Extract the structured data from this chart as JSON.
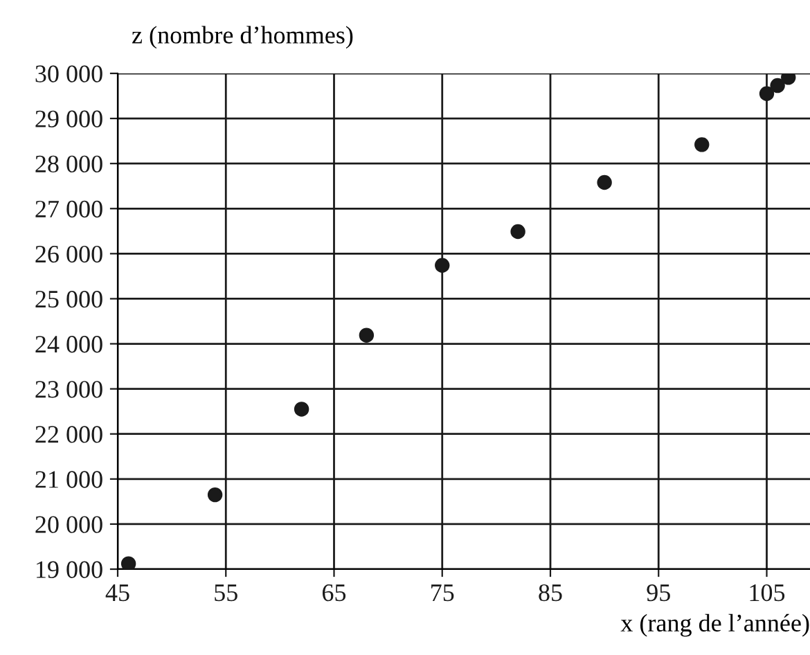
{
  "chart_data": {
    "type": "scatter",
    "xlabel": "x (rang de l’année)",
    "ylabel": "z (nombre d’hommes)",
    "x": [
      46,
      54,
      62,
      68,
      75,
      82,
      90,
      99,
      105,
      106,
      107
    ],
    "series": [
      {
        "color": "#1a1a1a",
        "values": [
          19120,
          20650,
          22550,
          24190,
          25740,
          26490,
          27580,
          28420,
          29550,
          29730,
          29910
        ]
      }
    ],
    "xlim": [
      45,
      109
    ],
    "xticks": [
      45,
      55,
      65,
      75,
      85,
      95,
      105
    ],
    "ylim": [
      19000,
      30000
    ],
    "yticks": [
      {
        "value": 19000,
        "label": "19 000"
      },
      {
        "value": 20000,
        "label": "20 000"
      },
      {
        "value": 21000,
        "label": "21 000"
      },
      {
        "value": 22000,
        "label": "22 000"
      },
      {
        "value": 23000,
        "label": "23 000"
      },
      {
        "value": 24000,
        "label": "24 000"
      },
      {
        "value": 25000,
        "label": "25 000"
      },
      {
        "value": 26000,
        "label": "26 000"
      },
      {
        "value": 27000,
        "label": "27 000"
      },
      {
        "value": 28000,
        "label": "28 000"
      },
      {
        "value": 29000,
        "label": "29 000"
      },
      {
        "value": 30000,
        "label": "30 000"
      }
    ],
    "grid": true,
    "marker": "circle"
  }
}
